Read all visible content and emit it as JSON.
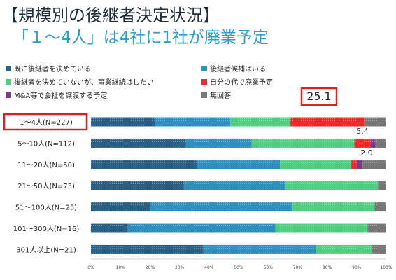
{
  "title": "【規模別の後継者決定状況】",
  "subtitle": "「１～4人」は4社に1社が廃業予定",
  "colors": {
    "s1": "#2a5f86",
    "s2": "#2e90c0",
    "s3": "#4fcf7f",
    "s4": "#ee2a2a",
    "s5": "#7b3a8e",
    "s6": "#777777",
    "highlight": "#e0201a"
  },
  "chart_data": {
    "type": "bar",
    "orientation": "horizontal",
    "stacked": true,
    "categories": [
      "1～4人(N=227)",
      "5～10人(N=112)",
      "11～20人(N=50)",
      "21～50人(N=73)",
      "51～100人(N=25)",
      "101～300人(N=16)",
      "301人以上(N=21)"
    ],
    "series": [
      {
        "name": "既に後継者を決めている",
        "values": [
          21.6,
          32.1,
          36.0,
          31.5,
          20.0,
          12.5,
          38.1
        ]
      },
      {
        "name": "後継者候補はいる",
        "values": [
          25.6,
          22.3,
          28.0,
          34.2,
          48.0,
          50.0,
          38.1
        ]
      },
      {
        "name": "後継者を決めていないが、事業継続はしたい",
        "values": [
          20.3,
          34.8,
          24.0,
          31.5,
          28.0,
          31.2,
          19.0
        ]
      },
      {
        "name": "自分の代で廃業予定",
        "values": [
          25.1,
          5.4,
          2.0,
          0,
          0,
          0,
          0
        ]
      },
      {
        "name": "M&A等で会社を譲渡する予定",
        "values": [
          0,
          1.8,
          2.0,
          0,
          0,
          0,
          0
        ]
      },
      {
        "name": "無回答",
        "values": [
          7.4,
          3.6,
          8.0,
          2.8,
          4.0,
          6.3,
          4.8
        ]
      }
    ],
    "xlim": [
      0,
      100
    ],
    "xticks": [
      "0%",
      "10%",
      "20%",
      "30%",
      "40%",
      "50%",
      "60%",
      "70%",
      "80%",
      "90%",
      "100%"
    ],
    "annotations": [
      "25.1",
      "5.4",
      "2.0"
    ],
    "highlighted_category": "1～4人(N=227)",
    "legend_position": "top"
  }
}
